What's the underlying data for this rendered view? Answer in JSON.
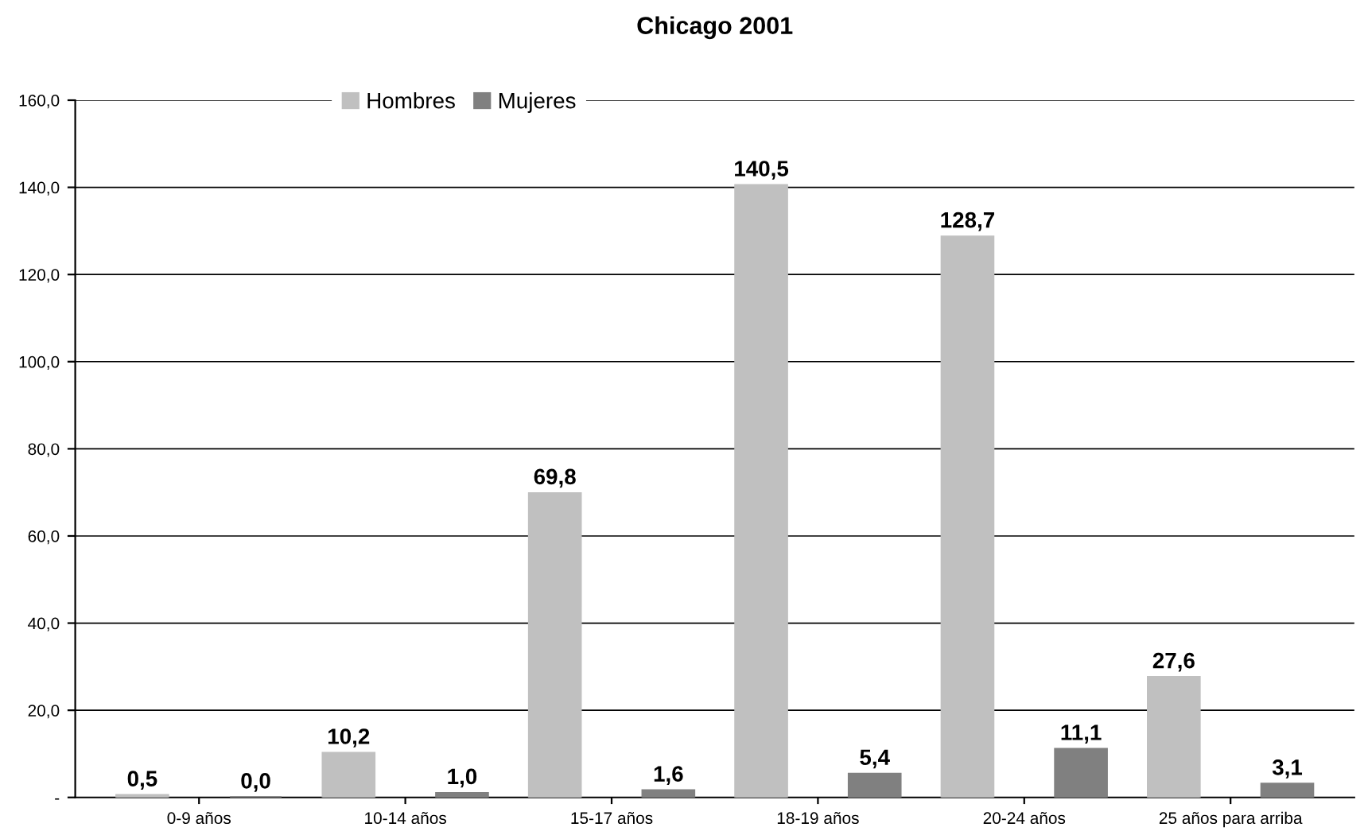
{
  "chart_data": {
    "type": "bar",
    "title": "Chicago 2001",
    "categories": [
      "0-9 años",
      "10-14 años",
      "15-17 años",
      "18-19 años",
      "20-24 años",
      "25 años para arriba"
    ],
    "series": [
      {
        "name": "Hombres",
        "color": "#c0c0c0",
        "values": [
          0.5,
          10.2,
          69.8,
          140.5,
          128.7,
          27.6
        ],
        "value_labels": [
          "0,5",
          "10,2",
          "69,8",
          "140,5",
          "128,7",
          "27,6"
        ]
      },
      {
        "name": "Mujeres",
        "color": "#808080",
        "values": [
          0.0,
          1.0,
          1.6,
          5.4,
          11.1,
          3.1
        ],
        "value_labels": [
          "0,0",
          "1,0",
          "1,6",
          "5,4",
          "11,1",
          "3,1"
        ]
      }
    ],
    "ylim": [
      0,
      160
    ],
    "yticks": [
      {
        "value": 0,
        "label": "-"
      },
      {
        "value": 20,
        "label": "20,0"
      },
      {
        "value": 40,
        "label": "40,0"
      },
      {
        "value": 60,
        "label": "60,0"
      },
      {
        "value": 80,
        "label": "80,0"
      },
      {
        "value": 100,
        "label": "100,0"
      },
      {
        "value": 120,
        "label": "120,0"
      },
      {
        "value": 140,
        "label": "140,0"
      },
      {
        "value": 160,
        "label": "160,0"
      }
    ],
    "grid": "y",
    "legend": "top"
  }
}
